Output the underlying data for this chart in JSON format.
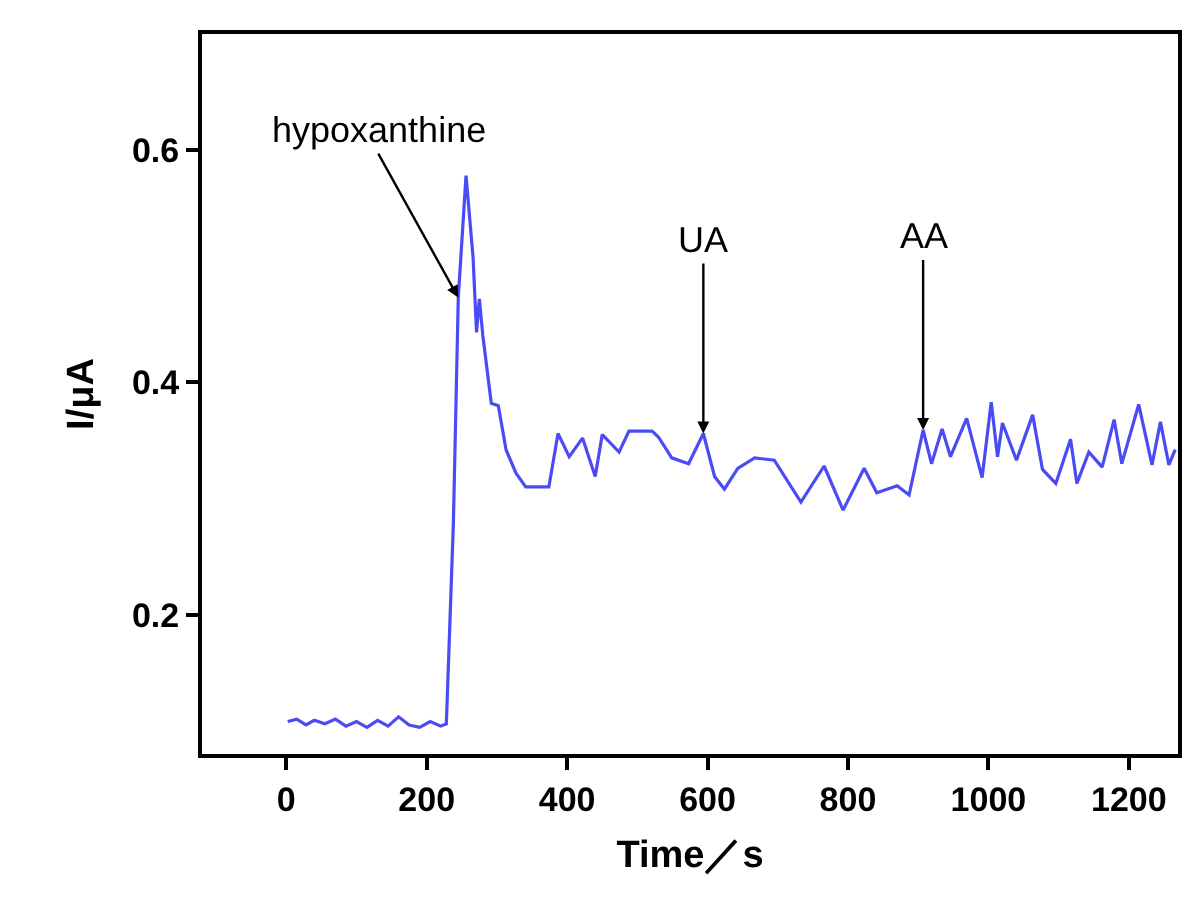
{
  "chart_data": {
    "type": "line",
    "xlabel": "Time／s",
    "ylabel": "I/μA",
    "xlim": [
      -120,
      1270
    ],
    "ylim": [
      0.08,
      0.7
    ],
    "xticks": [
      0,
      200,
      400,
      600,
      800,
      1000,
      1200
    ],
    "yticks": [
      0.2,
      0.4,
      0.6
    ],
    "marker": "none",
    "line_style": "solid",
    "series": [
      {
        "color": "#4b4bf5",
        "x": [
          2,
          15,
          28,
          40,
          55,
          70,
          85,
          100,
          115,
          130,
          145,
          160,
          175,
          190,
          205,
          220,
          228,
          238,
          245,
          256,
          266,
          271,
          275,
          280,
          292,
          302,
          313,
          327,
          341,
          374,
          387,
          403,
          422,
          440,
          450,
          474,
          488,
          521,
          530,
          549,
          573,
          594,
          610,
          624,
          643,
          667,
          695,
          733,
          766,
          793,
          823,
          841,
          870,
          887,
          907,
          919,
          934,
          946,
          969,
          991,
          1004,
          1013,
          1020,
          1040,
          1063,
          1077,
          1096,
          1117,
          1126,
          1143,
          1162,
          1179,
          1190,
          1214,
          1233,
          1245,
          1257,
          1266
        ],
        "values": [
          0.108,
          0.11,
          0.105,
          0.109,
          0.106,
          0.11,
          0.104,
          0.108,
          0.103,
          0.109,
          0.104,
          0.112,
          0.105,
          0.103,
          0.108,
          0.104,
          0.106,
          0.279,
          0.473,
          0.578,
          0.508,
          0.443,
          0.472,
          0.44,
          0.382,
          0.38,
          0.342,
          0.322,
          0.31,
          0.31,
          0.356,
          0.336,
          0.352,
          0.319,
          0.355,
          0.34,
          0.358,
          0.358,
          0.353,
          0.335,
          0.33,
          0.356,
          0.319,
          0.308,
          0.326,
          0.335,
          0.333,
          0.297,
          0.328,
          0.29,
          0.326,
          0.305,
          0.311,
          0.303,
          0.359,
          0.33,
          0.36,
          0.336,
          0.369,
          0.318,
          0.383,
          0.336,
          0.365,
          0.333,
          0.372,
          0.325,
          0.313,
          0.351,
          0.313,
          0.34,
          0.327,
          0.368,
          0.33,
          0.381,
          0.329,
          0.366,
          0.329,
          0.342
        ]
      }
    ],
    "annotations": [
      {
        "text": "hypoxanthine",
        "x": 245,
        "y": 0.473
      },
      {
        "text": "UA",
        "x": 594,
        "y": 0.356
      },
      {
        "text": "AA",
        "x": 907,
        "y": 0.359
      }
    ]
  }
}
